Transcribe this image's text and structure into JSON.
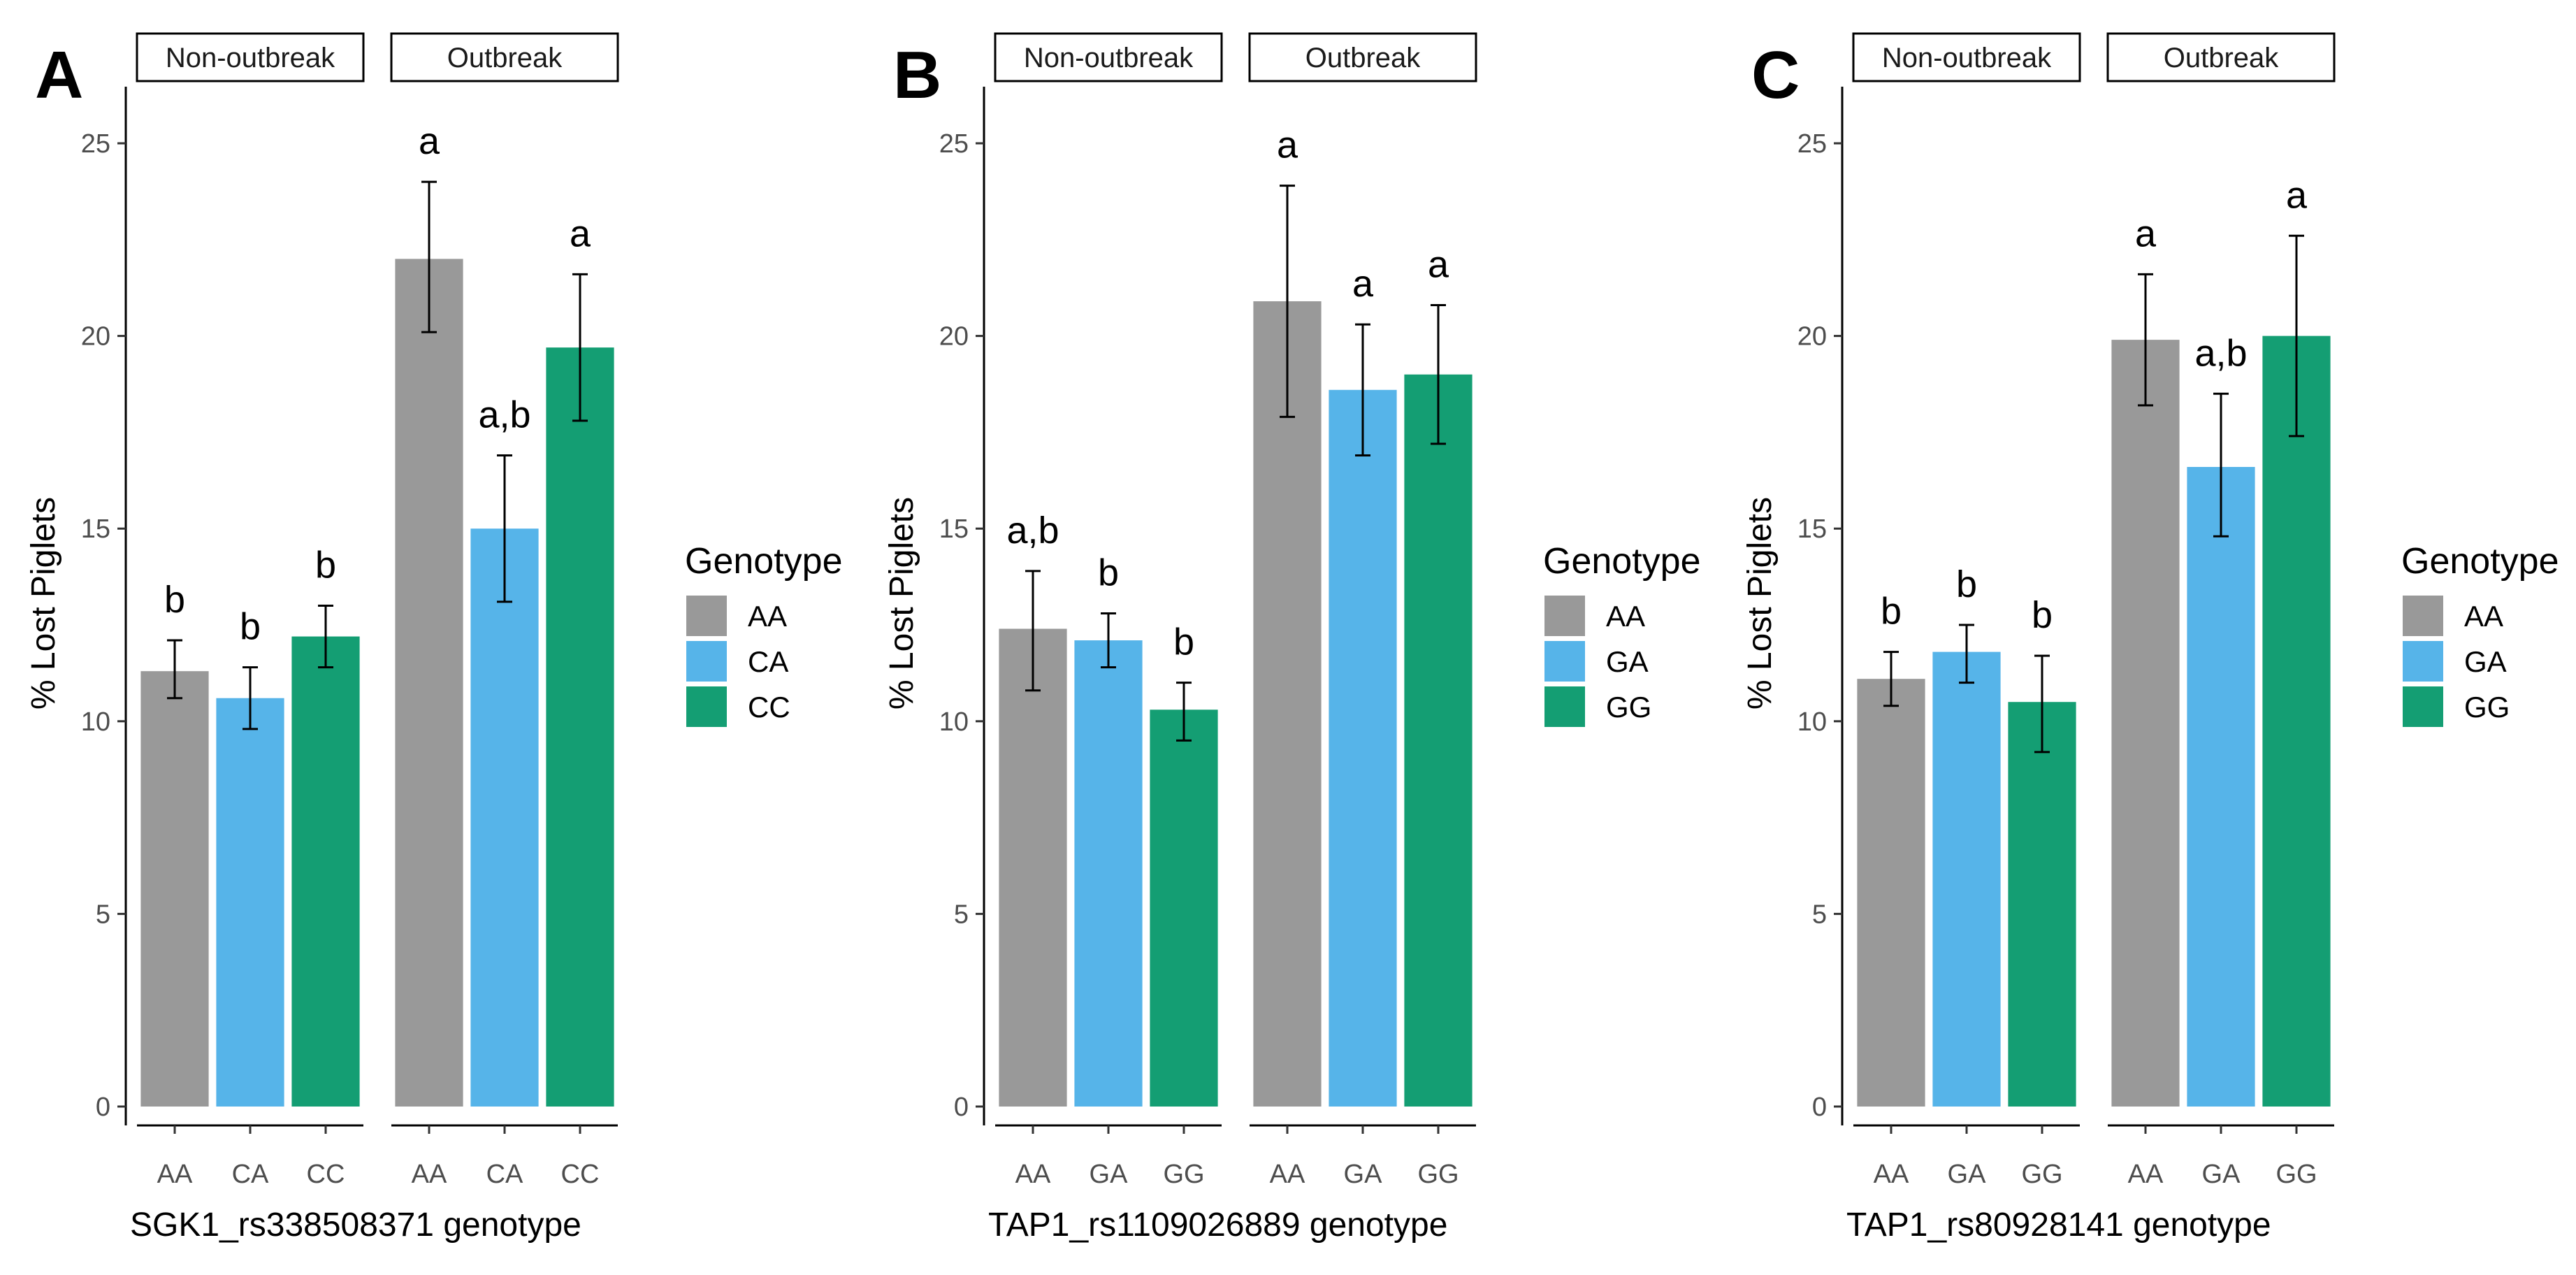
{
  "chart_data": [
    {
      "type": "bar",
      "panel_label": "A",
      "facets": [
        "Non-outbreak",
        "Outbreak"
      ],
      "categories": [
        "AA",
        "CA",
        "CC"
      ],
      "series": [
        {
          "facet": "Non-outbreak",
          "values": [
            11.3,
            10.6,
            12.2
          ],
          "error_low": [
            10.6,
            9.8,
            11.4
          ],
          "error_high": [
            12.1,
            11.4,
            13.0
          ],
          "letters": [
            "b",
            "b",
            "b"
          ]
        },
        {
          "facet": "Outbreak",
          "values": [
            22.0,
            15.0,
            19.7
          ],
          "error_low": [
            20.1,
            13.1,
            17.8
          ],
          "error_high": [
            24.0,
            16.9,
            21.6
          ],
          "letters": [
            "a",
            "a,b",
            "a"
          ]
        }
      ],
      "ylabel": "% Lost Piglets",
      "xlabel": "SGK1_rs338508371 genotype",
      "ylim": [
        0,
        26
      ],
      "yticks": [
        "0",
        "5",
        "10",
        "15",
        "20",
        "25"
      ],
      "legend": {
        "title": "Genotype",
        "entries": [
          "AA",
          "CA",
          "CC"
        ],
        "position": "right"
      }
    },
    {
      "type": "bar",
      "panel_label": "B",
      "facets": [
        "Non-outbreak",
        "Outbreak"
      ],
      "categories": [
        "AA",
        "GA",
        "GG"
      ],
      "series": [
        {
          "facet": "Non-outbreak",
          "values": [
            12.4,
            12.1,
            10.3
          ],
          "error_low": [
            10.8,
            11.4,
            9.5
          ],
          "error_high": [
            13.9,
            12.8,
            11.0
          ],
          "letters": [
            "a,b",
            "b",
            "b"
          ]
        },
        {
          "facet": "Outbreak",
          "values": [
            20.9,
            18.6,
            19.0
          ],
          "error_low": [
            17.9,
            16.9,
            17.2
          ],
          "error_high": [
            23.9,
            20.3,
            20.8
          ],
          "letters": [
            "a",
            "a",
            "a"
          ]
        }
      ],
      "ylabel": "% Lost Piglets",
      "xlabel": "TAP1_rs1109026889 genotype",
      "ylim": [
        0,
        26
      ],
      "yticks": [
        "0",
        "5",
        "10",
        "15",
        "20",
        "25"
      ],
      "legend": {
        "title": "Genotype",
        "entries": [
          "AA",
          "GA",
          "GG"
        ],
        "position": "right"
      }
    },
    {
      "type": "bar",
      "panel_label": "C",
      "facets": [
        "Non-outbreak",
        "Outbreak"
      ],
      "categories": [
        "AA",
        "GA",
        "GG"
      ],
      "series": [
        {
          "facet": "Non-outbreak",
          "values": [
            11.1,
            11.8,
            10.5
          ],
          "error_low": [
            10.4,
            11.0,
            9.2
          ],
          "error_high": [
            11.8,
            12.5,
            11.7
          ],
          "letters": [
            "b",
            "b",
            "b"
          ]
        },
        {
          "facet": "Outbreak",
          "values": [
            19.9,
            16.6,
            20.0
          ],
          "error_low": [
            18.2,
            14.8,
            17.4
          ],
          "error_high": [
            21.6,
            18.5,
            22.6
          ],
          "letters": [
            "a",
            "a,b",
            "a"
          ]
        }
      ],
      "ylabel": "% Lost Piglets",
      "xlabel": "TAP1_rs80928141 genotype",
      "ylim": [
        0,
        26
      ],
      "yticks": [
        "0",
        "5",
        "10",
        "15",
        "20",
        "25"
      ],
      "legend": {
        "title": "Genotype",
        "entries": [
          "AA",
          "GA",
          "GG"
        ],
        "position": "right"
      }
    }
  ],
  "colors": {
    "genotype_1": "#999999",
    "genotype_2": "#56B4E9",
    "genotype_3": "#149E73",
    "axis": "#000000",
    "tick_text": "#4d4d4d"
  }
}
